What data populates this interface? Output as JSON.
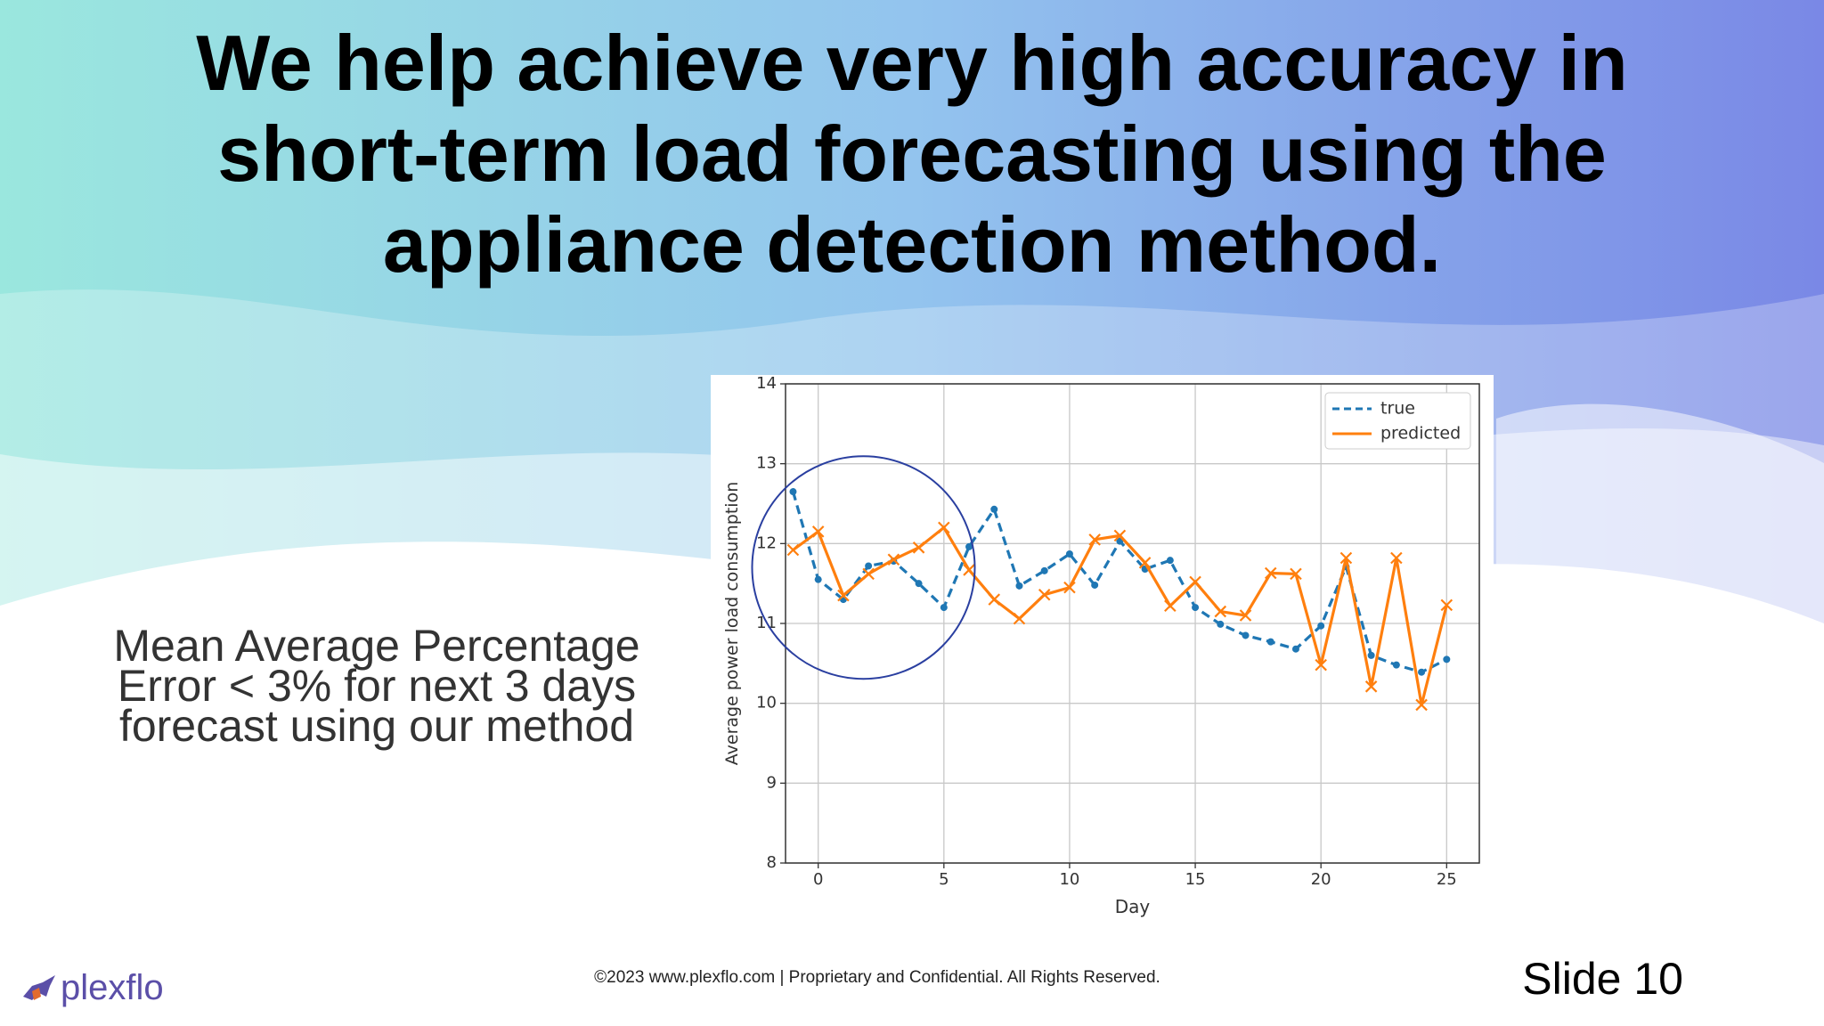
{
  "title": "We help achieve very high accuracy in short-term load forecasting using the appliance detection method.",
  "body": "Mean Average Percentage Error < 3% for next 3 days forecast using our method",
  "footer": "©2023 www.plexflo.com | Proprietary and Confidential. All Rights Reserved.",
  "slide_number": "Slide 10",
  "logo": "plexflo",
  "chart_data": {
    "type": "line",
    "x_label": "Day",
    "y_label": "Average power load consumption",
    "x": [
      -1,
      0,
      1,
      2,
      3,
      4,
      5,
      6,
      7,
      8,
      9,
      10,
      11,
      12,
      13,
      14,
      15,
      16,
      17,
      18,
      19,
      20,
      21,
      22,
      23,
      24,
      25
    ],
    "series": [
      {
        "name": "true",
        "color": "#1f77b4",
        "style": "dashed",
        "values": [
          12.65,
          11.55,
          11.3,
          11.72,
          11.78,
          11.5,
          11.2,
          11.96,
          12.43,
          11.47,
          11.66,
          11.87,
          11.48,
          12.03,
          11.68,
          11.79,
          11.2,
          10.99,
          10.85,
          10.77,
          10.68,
          10.97,
          11.71,
          10.6,
          10.48,
          10.39,
          10.55
        ]
      },
      {
        "name": "predicted",
        "color": "#ff7f0e",
        "style": "solid",
        "values": [
          11.92,
          12.15,
          11.35,
          11.62,
          11.8,
          11.95,
          12.2,
          11.67,
          11.3,
          11.06,
          11.36,
          11.45,
          12.05,
          12.1,
          11.76,
          11.22,
          11.52,
          11.15,
          11.1,
          11.63,
          11.62,
          10.48,
          11.82,
          10.21,
          11.82,
          9.98,
          11.23
        ]
      }
    ],
    "xlim": [
      -1.3,
      26.3
    ],
    "ylim": [
      8,
      14
    ],
    "xticks": [
      0,
      5,
      10,
      15,
      20,
      25
    ],
    "yticks": [
      8,
      9,
      10,
      11,
      12,
      13,
      14
    ],
    "grid": true,
    "legend": "upper right"
  }
}
